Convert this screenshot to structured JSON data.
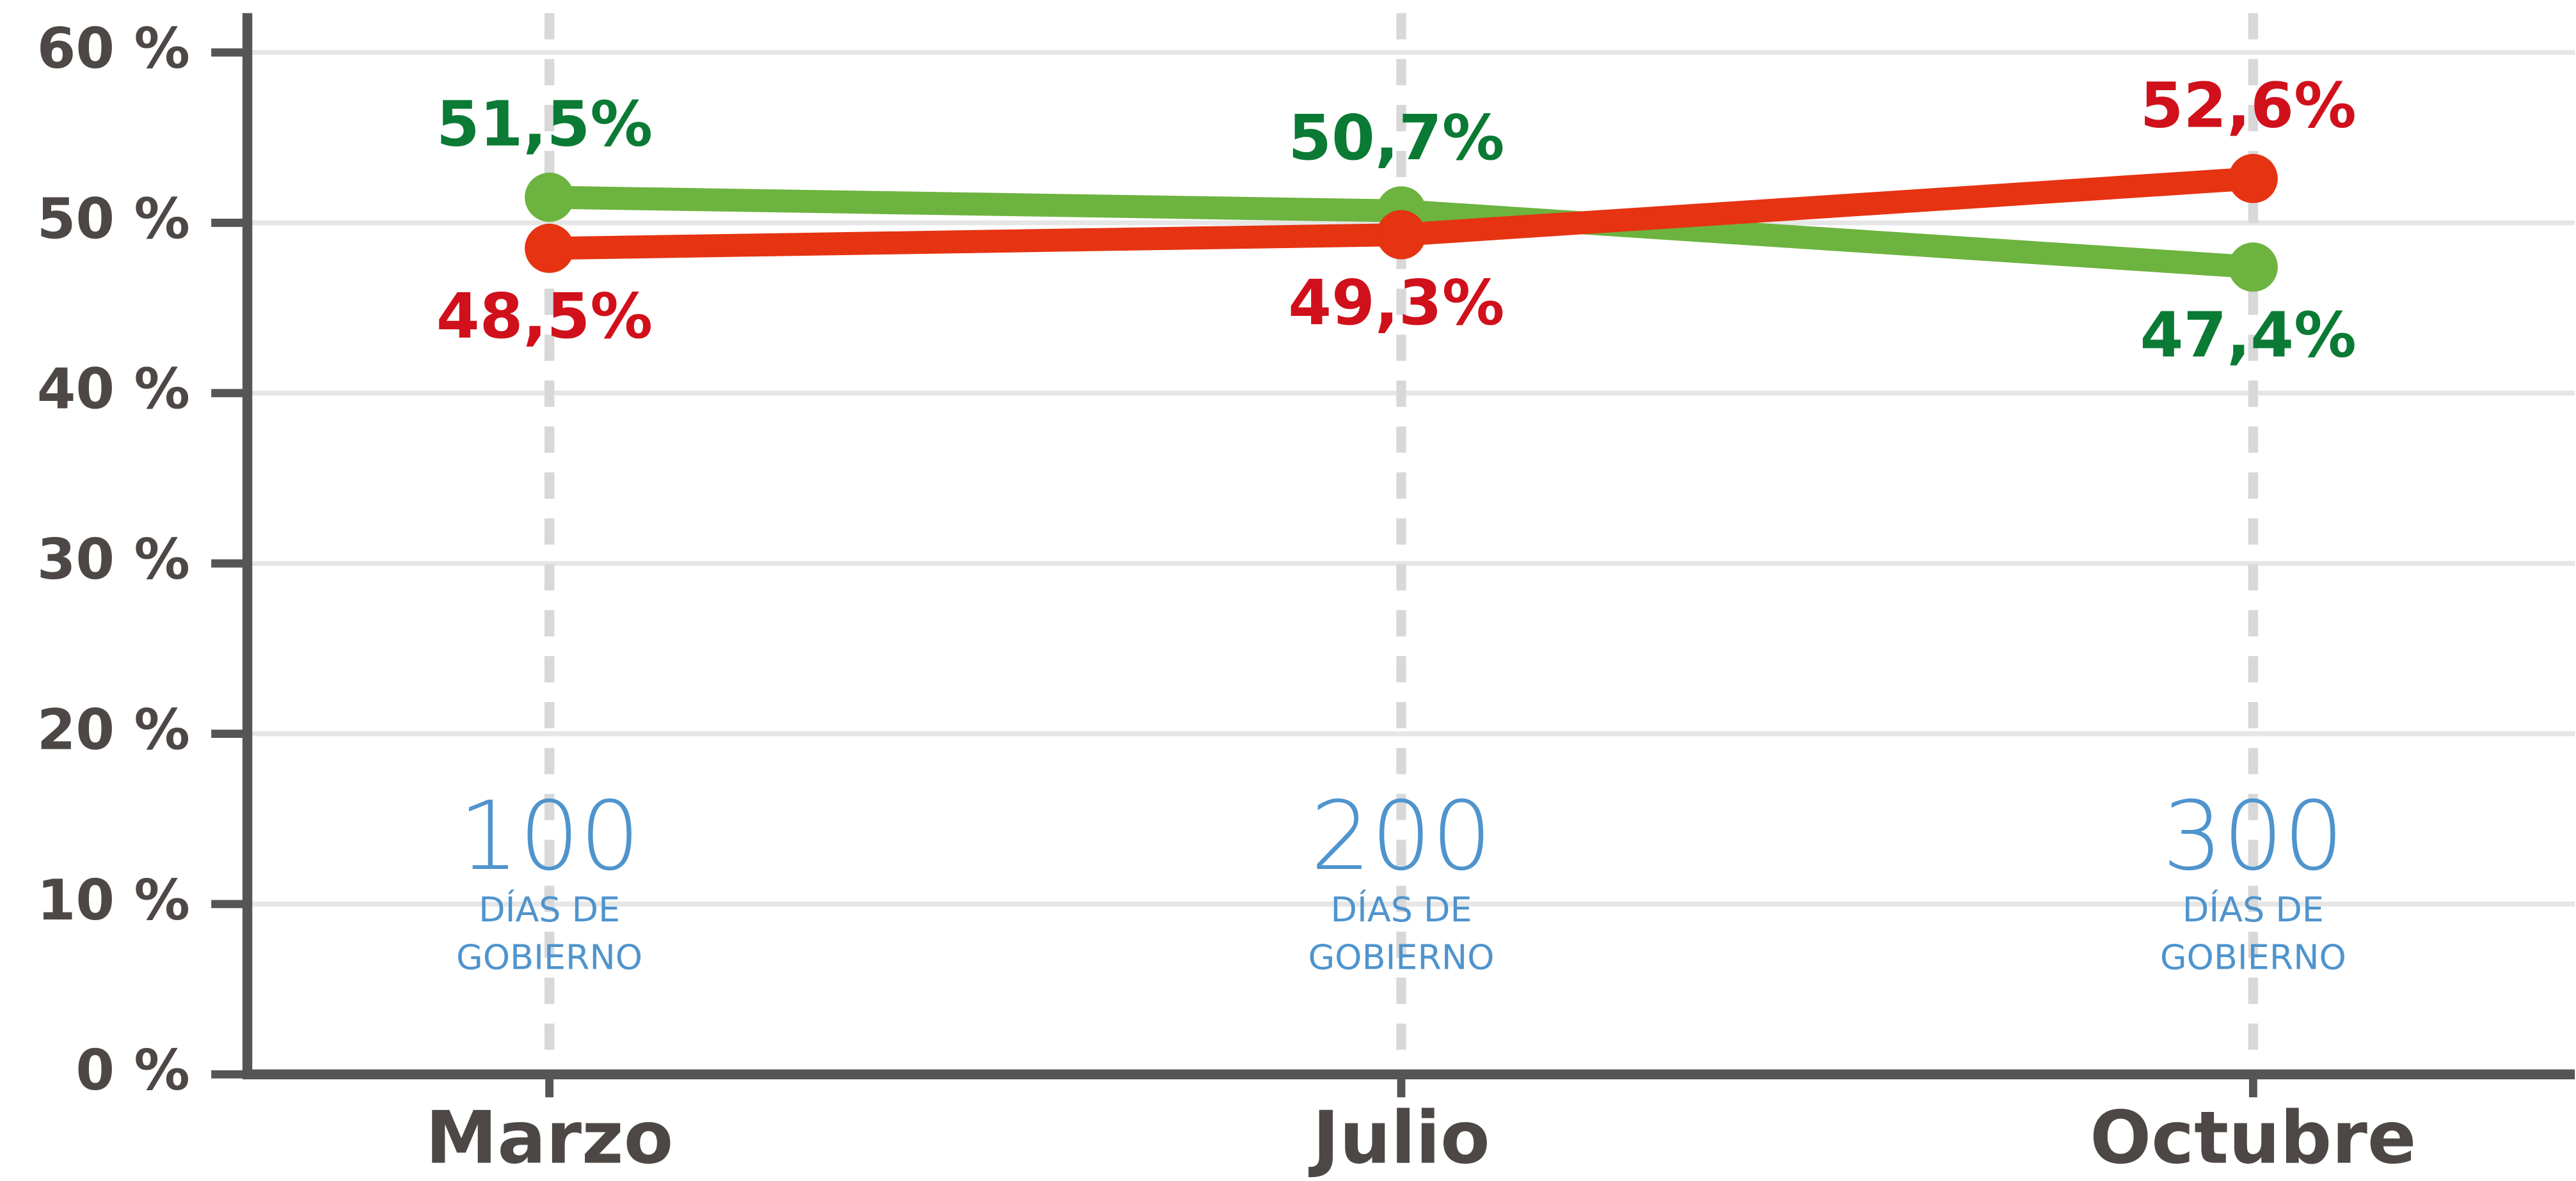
{
  "chart_data": {
    "type": "line",
    "categories": [
      "Marzo",
      "Julio",
      "Octubre"
    ],
    "series": [
      {
        "color": "#6db33f",
        "label_color": "#0a7a34",
        "values": [
          51.5,
          50.7,
          47.4
        ],
        "value_labels": [
          "51,5%",
          "50,7%",
          "47,4%"
        ]
      },
      {
        "color": "#e63312",
        "label_color": "#d0101b",
        "values": [
          48.5,
          49.3,
          52.6
        ],
        "value_labels": [
          "48,5%",
          "49,3%",
          "52,6%"
        ]
      }
    ],
    "annotations": [
      {
        "text": "100",
        "lines": [
          "DÍAS DE",
          "GOBIERNO"
        ]
      },
      {
        "text": "200",
        "lines": [
          "DÍAS DE",
          "GOBIERNO"
        ]
      },
      {
        "text": "300",
        "lines": [
          "DÍAS DE",
          "GOBIERNO"
        ]
      }
    ],
    "ylim": [
      0,
      60
    ],
    "yticks": [
      {
        "value": 0,
        "label": "0 %"
      },
      {
        "value": 10,
        "label": "10 %"
      },
      {
        "value": 20,
        "label": "20 %"
      },
      {
        "value": 30,
        "label": "30 %"
      },
      {
        "value": 40,
        "label": "40 %"
      },
      {
        "value": 50,
        "label": "50 %"
      },
      {
        "value": 60,
        "label": "60 %"
      }
    ],
    "grid": true
  }
}
